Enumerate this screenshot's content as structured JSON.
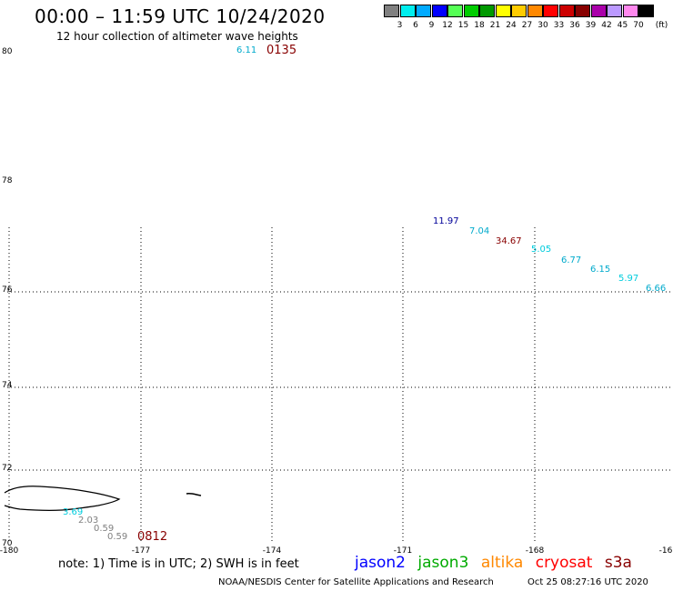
{
  "header": {
    "title": "00:00 – 11:59 UTC 10/24/2020",
    "subtitle": "12 hour collection of altimeter wave heights"
  },
  "colorbar": {
    "unit": "(ft)",
    "bins": [
      {
        "label": "3",
        "color": "#808080"
      },
      {
        "label": "6",
        "color": "#00eeee"
      },
      {
        "label": "9",
        "color": "#00aaff"
      },
      {
        "label": "12",
        "color": "#0000ff"
      },
      {
        "label": "15",
        "color": "#55ff55"
      },
      {
        "label": "18",
        "color": "#00cc00"
      },
      {
        "label": "21",
        "color": "#009900"
      },
      {
        "label": "24",
        "color": "#ffff00"
      },
      {
        "label": "27",
        "color": "#ffcc00"
      },
      {
        "label": "30",
        "color": "#ff8800"
      },
      {
        "label": "33",
        "color": "#ff0000"
      },
      {
        "label": "36",
        "color": "#cc0000"
      },
      {
        "label": "39",
        "color": "#880000"
      },
      {
        "label": "42",
        "color": "#aa00aa"
      },
      {
        "label": "45",
        "color": "#bb99ff"
      },
      {
        "label": "70",
        "color": "#ff88ee"
      },
      {
        "label": "",
        "color": "#000000"
      }
    ]
  },
  "map": {
    "lat_labels": [
      "80",
      "78",
      "76",
      "74",
      "72",
      "70"
    ],
    "lon_labels": [
      "-180",
      "-177",
      "-174",
      "-171",
      "-168",
      "-16"
    ],
    "pass_times": [
      {
        "text": "0135",
        "color": "#880000"
      },
      {
        "text": "0812",
        "color": "#880000"
      }
    ],
    "observations": [
      {
        "text": "6.11",
        "color": "#00aacc"
      },
      {
        "text": "11.97",
        "color": "#000099"
      },
      {
        "text": "7.04",
        "color": "#00aacc"
      },
      {
        "text": "34.67",
        "color": "#880000"
      },
      {
        "text": "5.05",
        "color": "#00ccdd"
      },
      {
        "text": "6.77",
        "color": "#00aacc"
      },
      {
        "text": "6.15",
        "color": "#00aacc"
      },
      {
        "text": "5.97",
        "color": "#00ccdd"
      },
      {
        "text": "6.66",
        "color": "#00aacc"
      },
      {
        "text": "3.69",
        "color": "#00ccdd"
      },
      {
        "text": "2.03",
        "color": "#808080"
      },
      {
        "text": "0.59",
        "color": "#808080"
      },
      {
        "text": "0.59",
        "color": "#808080"
      }
    ]
  },
  "footer": {
    "note": "note: 1) Time is in UTC; 2) SWH is in feet",
    "satellites": [
      {
        "name": "jason2",
        "color": "#0000ff"
      },
      {
        "name": "jason3",
        "color": "#00aa00"
      },
      {
        "name": "altika",
        "color": "#ff8800"
      },
      {
        "name": "cryosat",
        "color": "#ff0000"
      },
      {
        "name": "s3a",
        "color": "#880000"
      }
    ],
    "credit": "NOAA/NESDIS Center for Satellite Applications and Research",
    "timestamp": "Oct 25 08:27:16 UTC 2020"
  }
}
